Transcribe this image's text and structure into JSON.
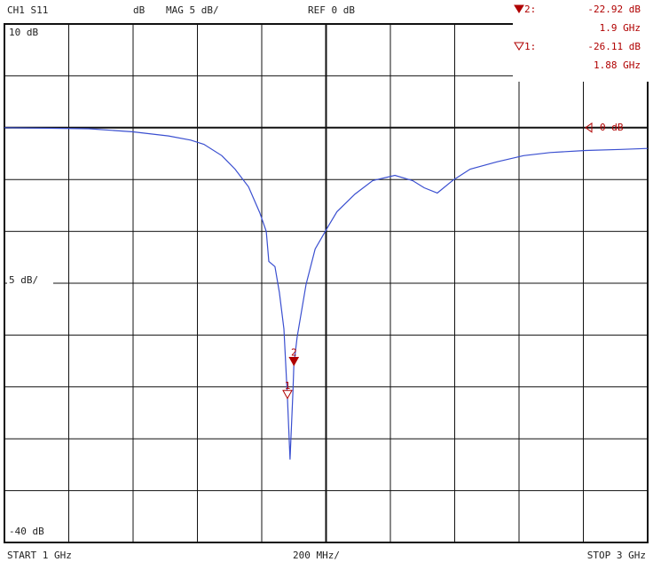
{
  "chart_data": {
    "type": "line",
    "header": {
      "channel": "CH1 S11",
      "format_unit": "dB",
      "scale": "MAG 5 dB/",
      "reference": "REF 0 dB"
    },
    "top_label": "10 dB",
    "scale_label": "5 dB/",
    "bottom_label": "-40 dB",
    "reference_level": 0,
    "reference_marker_label": "0 dB",
    "footer": {
      "start": "START 1 GHz",
      "span_per_div": "200 MHz/",
      "stop": "STOP 3 GHz"
    },
    "xlim": [
      1,
      3
    ],
    "ylim": [
      -40,
      10
    ],
    "xticks": [
      1,
      1.2,
      1.4,
      1.6,
      1.8,
      2,
      2.2,
      2.4,
      2.6,
      2.8,
      3
    ],
    "yticks": [
      -40,
      -35,
      -30,
      -25,
      -20,
      -15,
      -10,
      -5,
      0,
      5,
      10
    ],
    "grid": true,
    "series": [
      {
        "color": "#3a4fd0",
        "x": [
          1.0,
          1.262,
          1.4,
          1.51,
          1.579,
          1.62,
          1.676,
          1.717,
          1.759,
          1.794,
          1.814,
          1.822,
          1.841,
          1.855,
          1.869,
          1.88,
          1.888,
          1.897,
          1.9,
          1.91,
          1.938,
          1.966,
          2.007,
          2.034,
          2.09,
          2.145,
          2.214,
          2.269,
          2.305,
          2.346,
          2.393,
          2.448,
          2.531,
          2.614,
          2.697,
          2.807,
          2.917,
          3.0
        ],
        "values": [
          0.0,
          -0.1,
          -0.4,
          -0.8,
          -1.2,
          -1.6,
          -2.7,
          -4.0,
          -5.7,
          -8.2,
          -10.0,
          -12.9,
          -13.4,
          -15.9,
          -19.4,
          -26.1,
          -32.0,
          -25.4,
          -22.9,
          -20.2,
          -15.1,
          -11.7,
          -9.5,
          -8.1,
          -6.4,
          -5.1,
          -4.6,
          -5.1,
          -5.8,
          -6.3,
          -5.1,
          -4.0,
          -3.3,
          -2.7,
          -2.4,
          -2.2,
          -2.1,
          -2.0
        ]
      }
    ],
    "markers": [
      {
        "label": "2",
        "readout": "2:",
        "x": 1.9,
        "y": -22.92,
        "x_label": "1.9 GHz",
        "y_label": "-22.92 dB",
        "style": "filled",
        "color": "#b00000"
      },
      {
        "label": "1",
        "readout": "1:",
        "x": 1.88,
        "y": -26.11,
        "x_label": "1.88 GHz",
        "y_label": "-26.11 dB",
        "style": "open",
        "color": "#b00000"
      }
    ]
  }
}
